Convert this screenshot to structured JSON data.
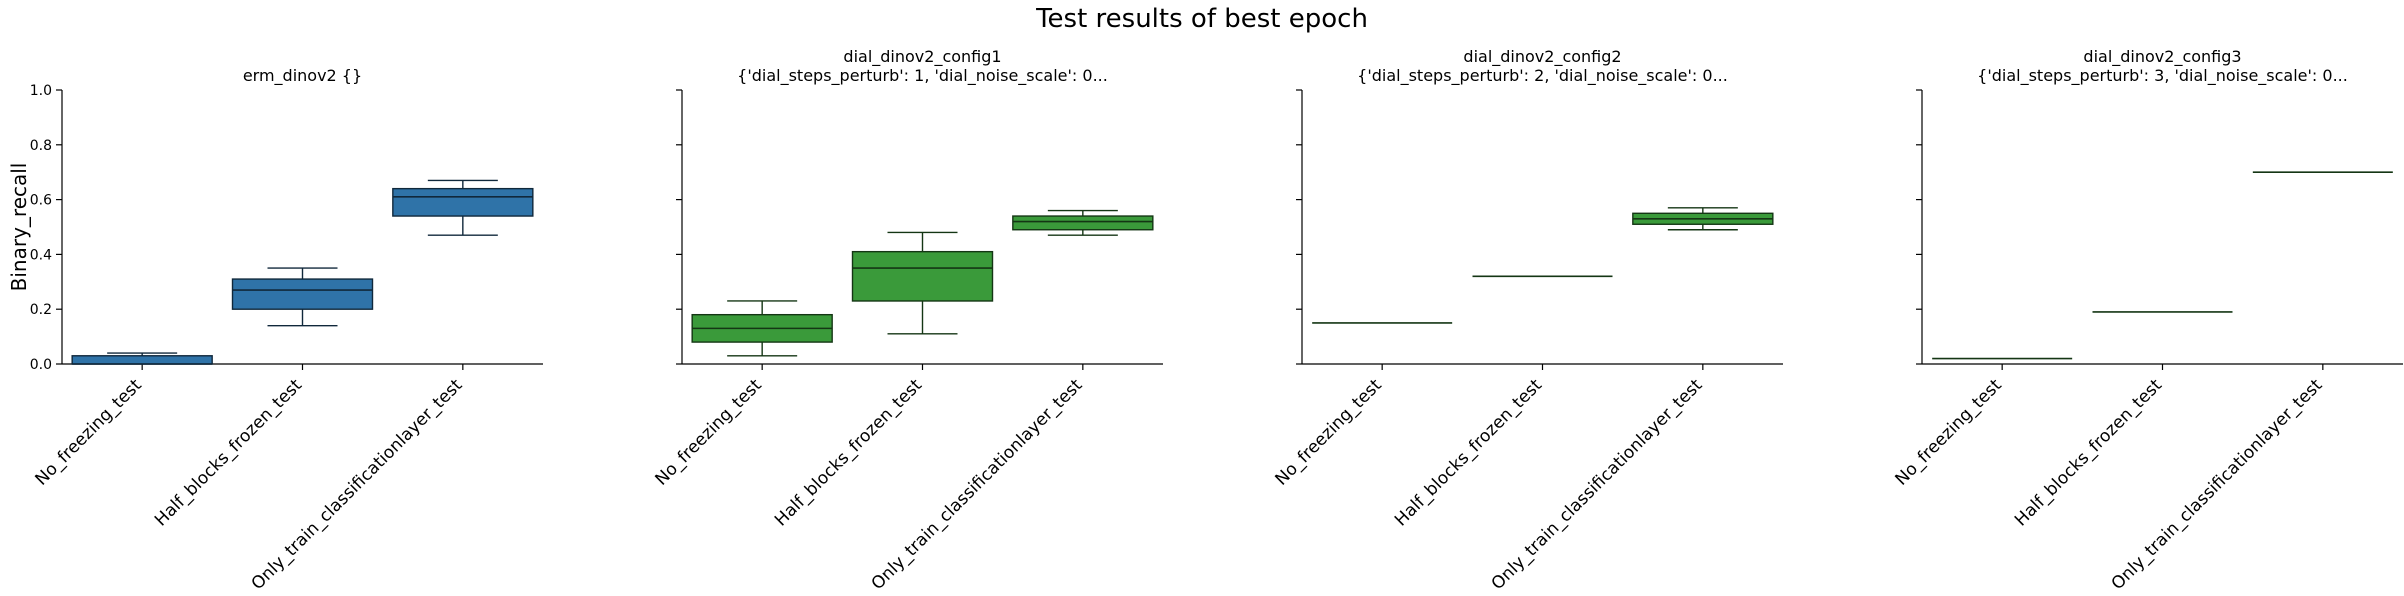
{
  "figure": {
    "title": "Test results of best epoch"
  },
  "chart_data": [
    {
      "type": "box",
      "title_line1": "erm_dinov2         {}",
      "title_line2": "",
      "ylabel": "Binary_recall",
      "ylim": [
        0,
        1
      ],
      "yticks": [
        "0.0",
        "0.2",
        "0.4",
        "0.6",
        "0.8",
        "1.0"
      ],
      "categories": [
        "No_freezing_test",
        "Half_blocks_frozen_test",
        "Only_train_classificationlayer_test"
      ],
      "color": "#2f73a8",
      "boxes": [
        {
          "min": 0.0,
          "q1": 0.0,
          "median": 0.0,
          "q3": 0.03,
          "max": 0.04
        },
        {
          "min": 0.14,
          "q1": 0.2,
          "median": 0.27,
          "q3": 0.31,
          "max": 0.35
        },
        {
          "min": 0.47,
          "q1": 0.54,
          "median": 0.61,
          "q3": 0.64,
          "max": 0.67
        }
      ]
    },
    {
      "type": "box",
      "title_line1": "dial_dinov2_config1",
      "title_line2": "{'dial_steps_perturb': 1, 'dial_noise_scale': 0...",
      "ylabel": "",
      "ylim": [
        0,
        1
      ],
      "yticks": [],
      "categories": [
        "No_freezing_test",
        "Half_blocks_frozen_test",
        "Only_train_classificationlayer_test"
      ],
      "color": "#3a9a3a",
      "boxes": [
        {
          "min": 0.03,
          "q1": 0.08,
          "median": 0.13,
          "q3": 0.18,
          "max": 0.23
        },
        {
          "min": 0.11,
          "q1": 0.23,
          "median": 0.35,
          "q3": 0.41,
          "max": 0.48
        },
        {
          "min": 0.47,
          "q1": 0.49,
          "median": 0.52,
          "q3": 0.54,
          "max": 0.56
        }
      ]
    },
    {
      "type": "box",
      "title_line1": "dial_dinov2_config2",
      "title_line2": "{'dial_steps_perturb': 2, 'dial_noise_scale': 0...",
      "ylabel": "",
      "ylim": [
        0,
        1
      ],
      "yticks": [],
      "categories": [
        "No_freezing_test",
        "Half_blocks_frozen_test",
        "Only_train_classificationlayer_test"
      ],
      "color": "#3a9a3a",
      "boxes": [
        {
          "min": 0.15,
          "q1": 0.15,
          "median": 0.15,
          "q3": 0.15,
          "max": 0.15
        },
        {
          "min": 0.32,
          "q1": 0.32,
          "median": 0.32,
          "q3": 0.32,
          "max": 0.32
        },
        {
          "min": 0.49,
          "q1": 0.51,
          "median": 0.53,
          "q3": 0.55,
          "max": 0.57
        }
      ]
    },
    {
      "type": "box",
      "title_line1": "dial_dinov2_config3",
      "title_line2": "{'dial_steps_perturb': 3, 'dial_noise_scale': 0...",
      "ylabel": "",
      "ylim": [
        0,
        1
      ],
      "yticks": [],
      "categories": [
        "No_freezing_test",
        "Half_blocks_frozen_test",
        "Only_train_classificationlayer_test"
      ],
      "color": "#3a9a3a",
      "boxes": [
        {
          "min": 0.02,
          "q1": 0.02,
          "median": 0.02,
          "q3": 0.02,
          "max": 0.02
        },
        {
          "min": 0.19,
          "q1": 0.19,
          "median": 0.19,
          "q3": 0.19,
          "max": 0.19
        },
        {
          "min": 0.7,
          "q1": 0.7,
          "median": 0.7,
          "q3": 0.7,
          "max": 0.7
        }
      ]
    }
  ]
}
